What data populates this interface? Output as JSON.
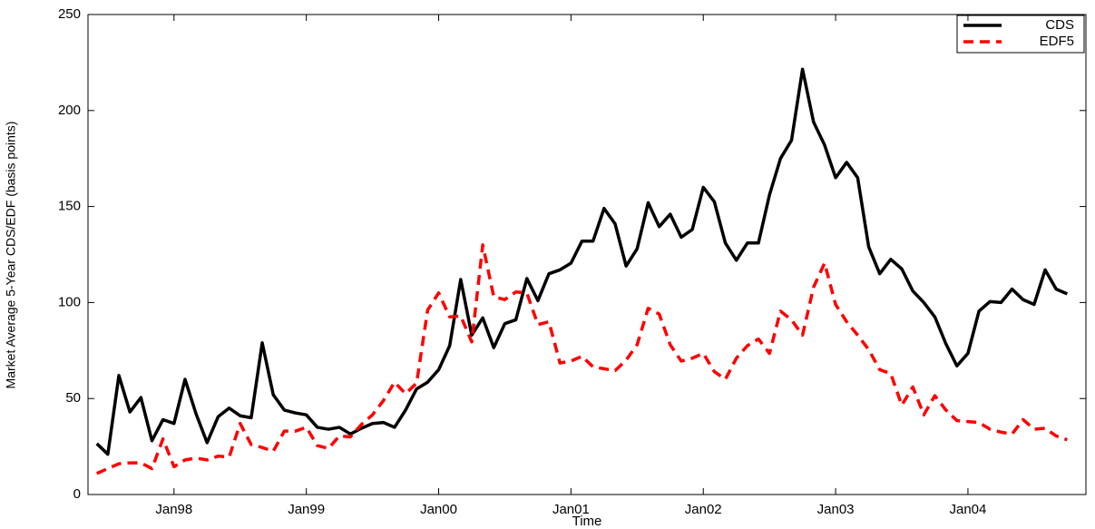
{
  "chart_data": {
    "type": "line",
    "x_label": "Time",
    "y_label": "Market Average 5-Year CDS/EDF (basis points)",
    "categories": [
      null,
      null,
      null,
      null,
      null,
      null,
      null,
      "Jan98",
      null,
      null,
      null,
      null,
      null,
      null,
      null,
      null,
      null,
      null,
      null,
      "Jan99",
      null,
      null,
      null,
      null,
      null,
      null,
      null,
      null,
      null,
      null,
      null,
      "Jan00",
      null,
      null,
      null,
      null,
      null,
      null,
      null,
      null,
      null,
      null,
      null,
      "Jan01",
      null,
      null,
      null,
      null,
      null,
      null,
      null,
      null,
      null,
      null,
      null,
      "Jan02",
      null,
      null,
      null,
      null,
      null,
      null,
      null,
      null,
      null,
      null,
      null,
      "Jan03",
      null,
      null,
      null,
      null,
      null,
      null,
      null,
      null,
      null,
      null,
      null,
      "Jan04",
      null,
      null,
      null,
      null,
      null,
      null,
      null,
      null,
      null
    ],
    "series": [
      {
        "name": "CDS",
        "color": "#000000",
        "dash": "solid",
        "values": [
          26.5,
          21,
          62,
          43,
          50.5,
          28,
          39,
          37,
          60,
          42,
          27,
          40.5,
          45,
          41,
          40,
          79,
          52,
          44,
          42.5,
          41.5,
          35,
          34,
          35,
          31.5,
          34.5,
          37,
          37.5,
          35,
          44,
          55,
          58.5,
          65,
          77.5,
          112,
          83,
          92,
          76.5,
          89,
          91,
          112.5,
          101,
          115,
          117,
          120.5,
          132,
          132,
          149,
          141,
          119,
          128,
          152,
          139.5,
          146,
          134,
          138,
          160,
          152.5,
          131,
          122,
          131,
          131,
          156,
          175,
          184.5,
          221.5,
          194,
          182,
          165,
          173,
          165,
          129,
          115,
          122.5,
          117.5,
          106,
          100,
          92.5,
          78.5,
          67,
          73.5,
          95.5,
          100.5,
          100,
          107,
          101.5,
          99,
          117,
          107,
          104.5
        ]
      },
      {
        "name": "EDF5",
        "color": "#ff0000",
        "dash": "dashed",
        "values": [
          11,
          13.5,
          16,
          16.5,
          16.5,
          13.5,
          29,
          14.5,
          18,
          19,
          18,
          20,
          19.5,
          37,
          26,
          24.5,
          22.5,
          33,
          33,
          35,
          25.5,
          24,
          30.5,
          30,
          36.5,
          41.5,
          49,
          58.5,
          52.5,
          58,
          96,
          105,
          92.5,
          93,
          79.5,
          130,
          103,
          101.5,
          105.5,
          105,
          88.5,
          90,
          68.5,
          69.5,
          72,
          66.5,
          65.5,
          64.5,
          70,
          78,
          97,
          94,
          78,
          69.5,
          71,
          73.5,
          64,
          60,
          71,
          77.5,
          81,
          73.5,
          95.5,
          91,
          83,
          108,
          120.5,
          99,
          90,
          83,
          75.5,
          65,
          63,
          46.5,
          56,
          41.5,
          51.5,
          44,
          38.5,
          38,
          37.5,
          34,
          32.5,
          31.5,
          39,
          34,
          34.5,
          30.5,
          28.5
        ]
      }
    ],
    "ylim": [
      0,
      250
    ],
    "yticks": [
      0,
      50,
      100,
      150,
      200,
      250
    ],
    "grid": false,
    "legend": "upper right"
  }
}
